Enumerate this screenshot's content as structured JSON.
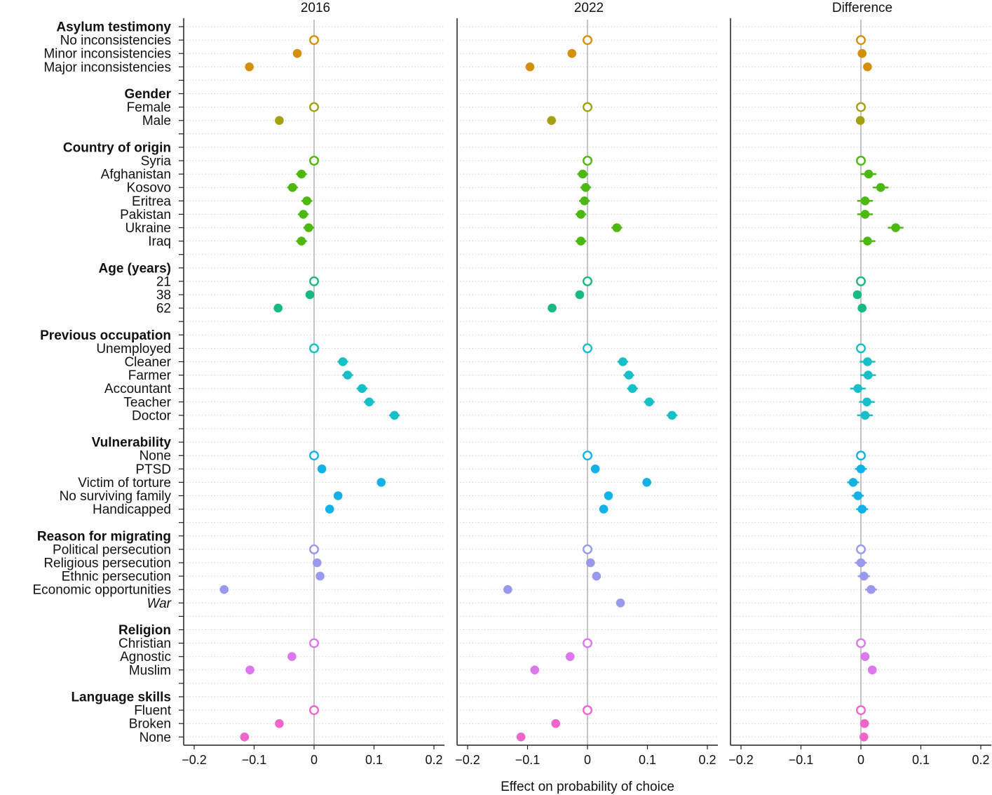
{
  "chart_data": {
    "type": "scatter",
    "subtype": "coefficient-dot-plot",
    "xlabel": "Effect on probability of choice",
    "xlim": [
      -0.22,
      0.22
    ],
    "xticks": [
      -0.2,
      -0.1,
      0,
      0.1,
      0.2
    ],
    "xtick_labels": [
      "−0.2",
      "−0.1",
      "0",
      "0.1",
      "0.2"
    ],
    "grid": "dotted horizontal per row",
    "panels": [
      {
        "key": "p2016",
        "title": "2016"
      },
      {
        "key": "p2022",
        "title": "2022"
      },
      {
        "key": "diff",
        "title": "Difference"
      }
    ],
    "groups": [
      {
        "label": "Asylum testimony",
        "color": "#D4900A",
        "items": [
          {
            "label": "No inconsistencies",
            "reference": true,
            "values": [
              0,
              0,
              0
            ],
            "ci": [
              0,
              0,
              0
            ]
          },
          {
            "label": "Minor inconsistencies",
            "values": [
              -0.028,
              -0.026,
              0.002
            ],
            "ci": [
              0.004,
              0.004,
              0.006
            ]
          },
          {
            "label": "Major inconsistencies",
            "values": [
              -0.108,
              -0.096,
              0.011
            ],
            "ci": [
              0.004,
              0.004,
              0.007
            ]
          }
        ]
      },
      {
        "label": "Gender",
        "color": "#A3A012",
        "items": [
          {
            "label": "Female",
            "reference": true,
            "values": [
              0,
              0,
              0
            ],
            "ci": [
              0,
              0,
              0
            ]
          },
          {
            "label": "Male",
            "values": [
              -0.058,
              -0.06,
              -0.001
            ],
            "ci": [
              0.003,
              0.003,
              0.004
            ]
          }
        ]
      },
      {
        "label": "Country of origin",
        "color": "#4DB812",
        "items": [
          {
            "label": "Syria",
            "reference": true,
            "values": [
              0,
              0,
              0
            ],
            "ci": [
              0,
              0,
              0
            ]
          },
          {
            "label": "Afghanistan",
            "values": [
              -0.021,
              -0.008,
              0.013
            ],
            "ci": [
              0.009,
              0.009,
              0.013
            ]
          },
          {
            "label": "Kosovo",
            "values": [
              -0.036,
              -0.003,
              0.033
            ],
            "ci": [
              0.009,
              0.009,
              0.013
            ]
          },
          {
            "label": "Eritrea",
            "values": [
              -0.012,
              -0.005,
              0.007
            ],
            "ci": [
              0.009,
              0.009,
              0.013
            ]
          },
          {
            "label": "Pakistan",
            "values": [
              -0.018,
              -0.011,
              0.007
            ],
            "ci": [
              0.009,
              0.009,
              0.013
            ]
          },
          {
            "label": "Ukraine",
            "values": [
              -0.009,
              0.049,
              0.058
            ],
            "ci": [
              0.009,
              0.009,
              0.013
            ]
          },
          {
            "label": "Iraq",
            "values": [
              -0.021,
              -0.011,
              0.011
            ],
            "ci": [
              0.009,
              0.009,
              0.013
            ]
          }
        ]
      },
      {
        "label": "Age (years)",
        "color": "#19B982",
        "items": [
          {
            "label": "21",
            "reference": true,
            "values": [
              0,
              0,
              0
            ],
            "ci": [
              0,
              0,
              0
            ]
          },
          {
            "label": "38",
            "values": [
              -0.007,
              -0.013,
              -0.006
            ],
            "ci": [
              0.004,
              0.004,
              0.006
            ]
          },
          {
            "label": "62",
            "values": [
              -0.06,
              -0.059,
              0.002
            ],
            "ci": [
              0.004,
              0.004,
              0.006
            ]
          }
        ]
      },
      {
        "label": "Previous occupation",
        "color": "#17BFC7",
        "items": [
          {
            "label": "Unemployed",
            "reference": true,
            "values": [
              0,
              0,
              0
            ],
            "ci": [
              0,
              0,
              0
            ]
          },
          {
            "label": "Cleaner",
            "values": [
              0.048,
              0.059,
              0.011
            ],
            "ci": [
              0.009,
              0.009,
              0.013
            ]
          },
          {
            "label": "Farmer",
            "values": [
              0.056,
              0.069,
              0.012
            ],
            "ci": [
              0.009,
              0.009,
              0.013
            ]
          },
          {
            "label": "Accountant",
            "values": [
              0.08,
              0.075,
              -0.005
            ],
            "ci": [
              0.009,
              0.009,
              0.013
            ]
          },
          {
            "label": "Teacher",
            "values": [
              0.092,
              0.103,
              0.01
            ],
            "ci": [
              0.009,
              0.009,
              0.013
            ]
          },
          {
            "label": "Doctor",
            "values": [
              0.134,
              0.141,
              0.007
            ],
            "ci": [
              0.009,
              0.009,
              0.013
            ]
          }
        ]
      },
      {
        "label": "Vulnerability",
        "color": "#12B2E6",
        "items": [
          {
            "label": "None",
            "reference": true,
            "values": [
              0,
              0,
              0
            ],
            "ci": [
              0,
              0,
              0
            ]
          },
          {
            "label": "PTSD",
            "values": [
              0.013,
              0.013,
              0.0
            ],
            "ci": [
              0.007,
              0.007,
              0.01
            ]
          },
          {
            "label": "Victim of torture",
            "values": [
              0.112,
              0.099,
              -0.013
            ],
            "ci": [
              0.007,
              0.007,
              0.01
            ]
          },
          {
            "label": "No surviving family",
            "values": [
              0.04,
              0.035,
              -0.005
            ],
            "ci": [
              0.007,
              0.007,
              0.01
            ]
          },
          {
            "label": "Handicapped",
            "values": [
              0.026,
              0.027,
              0.002
            ],
            "ci": [
              0.007,
              0.007,
              0.01
            ]
          }
        ]
      },
      {
        "label": "Reason for migrating",
        "color": "#9999EE",
        "items": [
          {
            "label": "Political persecution",
            "reference": true,
            "values": [
              0,
              0,
              0
            ],
            "ci": [
              0,
              0,
              0
            ]
          },
          {
            "label": "Religious persecution",
            "values": [
              0.005,
              0.005,
              0.0
            ],
            "ci": [
              0.007,
              0.007,
              0.01
            ]
          },
          {
            "label": "Ethnic persecution",
            "values": [
              0.01,
              0.015,
              0.005
            ],
            "ci": [
              0.007,
              0.007,
              0.01
            ]
          },
          {
            "label": "Economic opportunities",
            "values": [
              -0.15,
              -0.133,
              0.017
            ],
            "ci": [
              0.007,
              0.007,
              0.01
            ]
          },
          {
            "label": "War",
            "italic": true,
            "values": [
              null,
              0.055,
              null
            ],
            "ci": [
              0,
              0.007,
              0
            ]
          }
        ]
      },
      {
        "label": "Religion",
        "color": "#DD77EE",
        "items": [
          {
            "label": "Christian",
            "reference": true,
            "values": [
              0,
              0,
              0
            ],
            "ci": [
              0,
              0,
              0
            ]
          },
          {
            "label": "Agnostic",
            "values": [
              -0.037,
              -0.029,
              0.007
            ],
            "ci": [
              0.004,
              0.004,
              0.006
            ]
          },
          {
            "label": "Muslim",
            "values": [
              -0.107,
              -0.088,
              0.019
            ],
            "ci": [
              0.004,
              0.004,
              0.006
            ]
          }
        ]
      },
      {
        "label": "Language skills",
        "color": "#EE66CC",
        "items": [
          {
            "label": "Fluent",
            "reference": true,
            "values": [
              0,
              0,
              0
            ],
            "ci": [
              0,
              0,
              0
            ]
          },
          {
            "label": "Broken",
            "values": [
              -0.058,
              -0.053,
              0.006
            ],
            "ci": [
              0.004,
              0.004,
              0.006
            ]
          },
          {
            "label": "None",
            "values": [
              -0.116,
              -0.111,
              0.005
            ],
            "ci": [
              0.004,
              0.004,
              0.006
            ]
          }
        ]
      }
    ]
  }
}
